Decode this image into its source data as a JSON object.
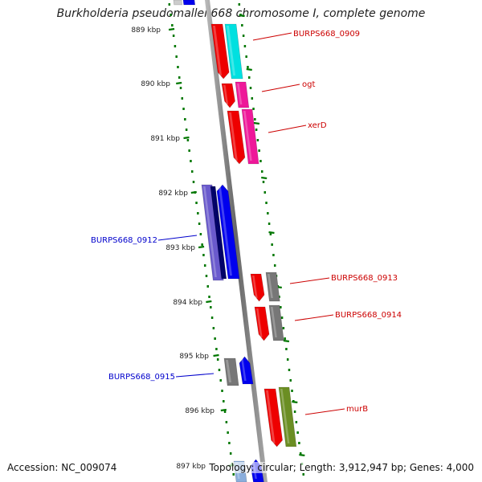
{
  "header": {
    "title": "Burkholderia pseudomallei 668 chromosome I, complete genome"
  },
  "footer": {
    "accession": "Accession: NC_009074",
    "stats": "Topology: circular; Length: 3,912,947 bp; Genes: 4,000"
  },
  "scale_labels": [
    "889 kbp",
    "890 kbp",
    "891 kbp",
    "892 kbp",
    "893 kbp",
    "894 kbp",
    "895 kbp",
    "896 kbp",
    "897 kbp"
  ],
  "colors": {
    "forward_label": "#cc0000",
    "reverse_label": "#0000cc",
    "backbone": "#888888",
    "scale_ticks": "#007700",
    "cds_forward": "#ee0000",
    "cds_reverse": "#0000ee"
  },
  "gene_labels": [
    {
      "text": "BURPS668_0909",
      "strand": "forward"
    },
    {
      "text": "ogt",
      "strand": "forward"
    },
    {
      "text": "xerD",
      "strand": "forward"
    },
    {
      "text": "BURPS668_0912",
      "strand": "reverse"
    },
    {
      "text": "BURPS668_0913",
      "strand": "forward"
    },
    {
      "text": "BURPS668_0914",
      "strand": "forward"
    },
    {
      "text": "BURPS668_0915",
      "strand": "reverse"
    },
    {
      "text": "murB",
      "strand": "forward"
    }
  ]
}
